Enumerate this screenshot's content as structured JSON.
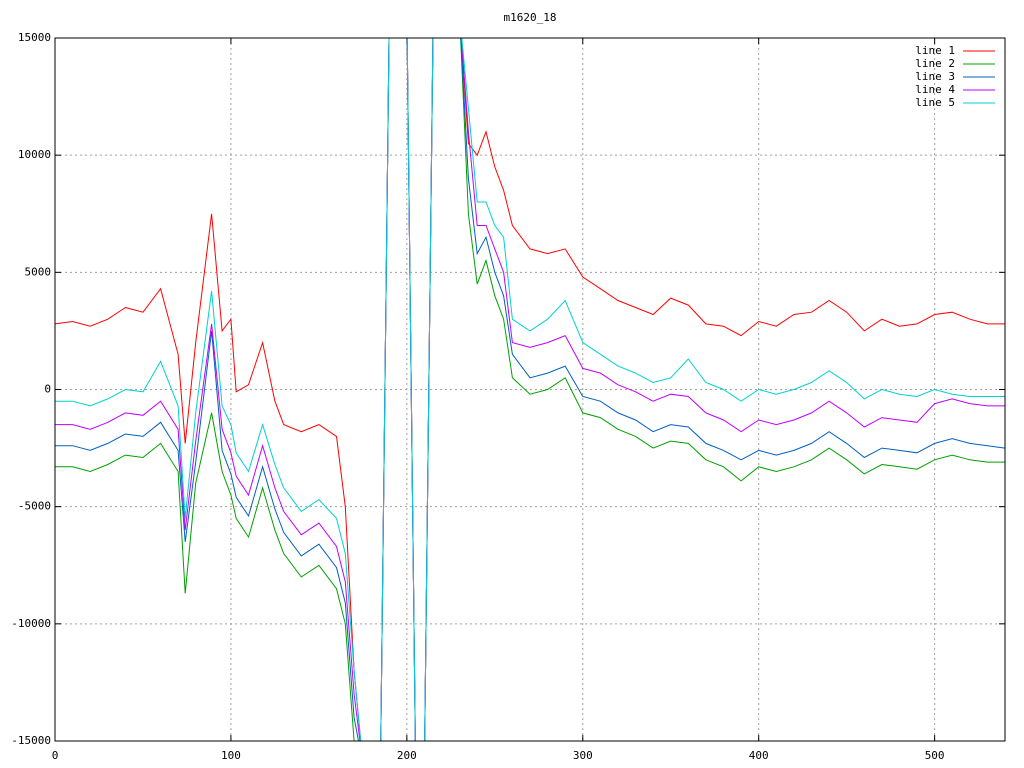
{
  "chart_data": {
    "type": "line",
    "title": "m1620_18",
    "x": [
      0,
      10,
      20,
      30,
      40,
      50,
      60,
      70,
      74,
      80,
      89,
      95,
      100,
      103,
      110,
      118,
      125,
      130,
      140,
      150,
      160,
      165,
      170,
      175,
      185,
      190,
      200,
      205,
      210,
      215,
      230,
      235,
      240,
      245,
      250,
      255,
      260,
      270,
      280,
      290,
      300,
      310,
      320,
      330,
      340,
      350,
      360,
      370,
      380,
      390,
      400,
      410,
      420,
      430,
      440,
      450,
      460,
      470,
      480,
      490,
      500,
      510,
      520,
      530,
      540
    ],
    "series": [
      {
        "name": "line 1",
        "color": "#ff0000",
        "values": [
          2800,
          2900,
          2700,
          3000,
          3500,
          3300,
          4300,
          1500,
          -2300,
          2000,
          7500,
          2500,
          3000,
          -100,
          200,
          2000,
          -500,
          -1500,
          -1800,
          -1500,
          -2000,
          -5000,
          -12000,
          -16000,
          -16000,
          16000,
          16000,
          -16000,
          -16000,
          16000,
          16000,
          10500,
          10000,
          11000,
          9500,
          8500,
          7000,
          6000,
          5800,
          6000,
          4800,
          4300,
          3800,
          3500,
          3200,
          3900,
          3600,
          2800,
          2700,
          2300,
          2900,
          2700,
          3200,
          3300,
          3800,
          3300,
          2500,
          3000,
          2700,
          2800,
          3200,
          3300,
          3000,
          2800,
          2800
        ]
      },
      {
        "name": "line 2",
        "color": "#00a000",
        "values": [
          -3300,
          -3300,
          -3500,
          -3200,
          -2800,
          -2900,
          -2300,
          -3500,
          -8700,
          -4000,
          -1000,
          -3500,
          -4500,
          -5500,
          -6300,
          -4200,
          -6000,
          -7000,
          -8000,
          -7500,
          -8500,
          -10000,
          -15000,
          -16000,
          -16000,
          16000,
          16000,
          -16000,
          -16000,
          16000,
          16000,
          7500,
          4500,
          5500,
          4000,
          3000,
          500,
          -200,
          0,
          500,
          -1000,
          -1200,
          -1700,
          -2000,
          -2500,
          -2200,
          -2300,
          -3000,
          -3300,
          -3900,
          -3300,
          -3500,
          -3300,
          -3000,
          -2500,
          -3000,
          -3600,
          -3200,
          -3300,
          -3400,
          -3000,
          -2800,
          -3000,
          -3100,
          -3100
        ]
      },
      {
        "name": "line 3",
        "color": "#0060c0",
        "values": [
          -2400,
          -2400,
          -2600,
          -2300,
          -1900,
          -2000,
          -1400,
          -2600,
          -6500,
          -3100,
          2500,
          -2600,
          -3600,
          -4600,
          -5400,
          -3300,
          -5100,
          -6100,
          -7100,
          -6600,
          -7600,
          -9100,
          -14000,
          -16000,
          -16000,
          16000,
          16000,
          -16000,
          -16000,
          16000,
          16000,
          9000,
          5800,
          6500,
          5000,
          4000,
          1500,
          500,
          700,
          1000,
          -300,
          -500,
          -1000,
          -1300,
          -1800,
          -1500,
          -1600,
          -2300,
          -2600,
          -3000,
          -2600,
          -2800,
          -2600,
          -2300,
          -1800,
          -2300,
          -2900,
          -2500,
          -2600,
          -2700,
          -2300,
          -2100,
          -2300,
          -2400,
          -2500
        ]
      },
      {
        "name": "line 4",
        "color": "#c000ff",
        "values": [
          -1500,
          -1500,
          -1700,
          -1400,
          -1000,
          -1100,
          -500,
          -1700,
          -6000,
          -2200,
          2800,
          -1700,
          -2700,
          -3700,
          -4500,
          -2400,
          -4200,
          -5200,
          -6200,
          -5700,
          -6700,
          -8200,
          -13000,
          -16000,
          -16000,
          16000,
          16000,
          -16000,
          -16000,
          16000,
          16000,
          11000,
          7000,
          7000,
          6000,
          5000,
          2000,
          1800,
          2000,
          2300,
          900,
          700,
          200,
          -100,
          -500,
          -200,
          -300,
          -1000,
          -1300,
          -1800,
          -1300,
          -1500,
          -1300,
          -1000,
          -500,
          -1000,
          -1600,
          -1200,
          -1300,
          -1400,
          -600,
          -400,
          -600,
          -700,
          -700
        ]
      },
      {
        "name": "line 5",
        "color": "#00d0d0",
        "values": [
          -500,
          -500,
          -700,
          -400,
          0,
          -100,
          1200,
          -700,
          -5500,
          -1000,
          4200,
          -700,
          -1500,
          -2700,
          -3500,
          -1500,
          -3200,
          -4200,
          -5200,
          -4700,
          -5500,
          -7000,
          -12000,
          -16000,
          -16000,
          16000,
          16000,
          -16000,
          -16000,
          16000,
          16000,
          12000,
          8000,
          8000,
          7000,
          6500,
          3000,
          2500,
          3000,
          3800,
          2000,
          1500,
          1000,
          700,
          300,
          500,
          1300,
          300,
          0,
          -500,
          0,
          -200,
          0,
          300,
          800,
          300,
          -400,
          0,
          -200,
          -300,
          0,
          -200,
          -300,
          -300,
          -300
        ]
      }
    ],
    "xlim": [
      0,
      540
    ],
    "xticks": [
      0,
      100,
      200,
      300,
      400,
      500
    ],
    "ylim": [
      -15000,
      15000
    ],
    "yticks": [
      -15000,
      -10000,
      -5000,
      0,
      5000,
      10000,
      15000
    ],
    "grid": true,
    "legend": "top-right"
  }
}
